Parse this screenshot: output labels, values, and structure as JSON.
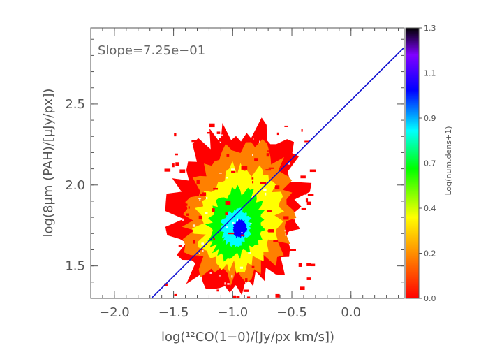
{
  "chart_data": {
    "type": "heatmap",
    "title": "",
    "xlabel": "log(¹²CO(1−0)/[Jy/px km/s])",
    "ylabel": "log(8μm (PAH)/[μJy/px])",
    "xlim": [
      -2.2,
      0.45
    ],
    "ylim": [
      1.3,
      2.97
    ],
    "xticks": [
      -2.0,
      -1.5,
      -1.0,
      -0.5,
      0.0
    ],
    "xtick_labels": [
      "−2.0",
      "−1.5",
      "−1.0",
      "−0.5",
      "0.0"
    ],
    "yticks": [
      1.5,
      2.0,
      2.5
    ],
    "ytick_labels": [
      "1.5",
      "2.0",
      "2.5"
    ],
    "annotation": "Slope=7.25e−01",
    "fit_line": {
      "slope": 0.725,
      "intercept": 2.5237,
      "color": "#1010d0"
    },
    "density_cloud": {
      "center": [
        -0.95,
        1.85
      ],
      "core": [
        -0.97,
        1.74
      ],
      "extent_x": [
        -1.5,
        -0.35
      ],
      "extent_y": [
        1.4,
        2.5
      ],
      "peak_value": 1.0
    },
    "colorbar": {
      "label": "Log(num.dens+1)",
      "range": [
        0.0,
        1.3
      ],
      "ticks": [
        "0.0",
        "0.2",
        "0.4",
        "0.7",
        "0.9",
        "1.1",
        "1.3"
      ],
      "colors": [
        "#ff0000",
        "#ff8000",
        "#ffff00",
        "#00ff00",
        "#00ffff",
        "#0000ff",
        "#8000ff",
        "#000000"
      ]
    },
    "grid": false,
    "legend": "none"
  }
}
